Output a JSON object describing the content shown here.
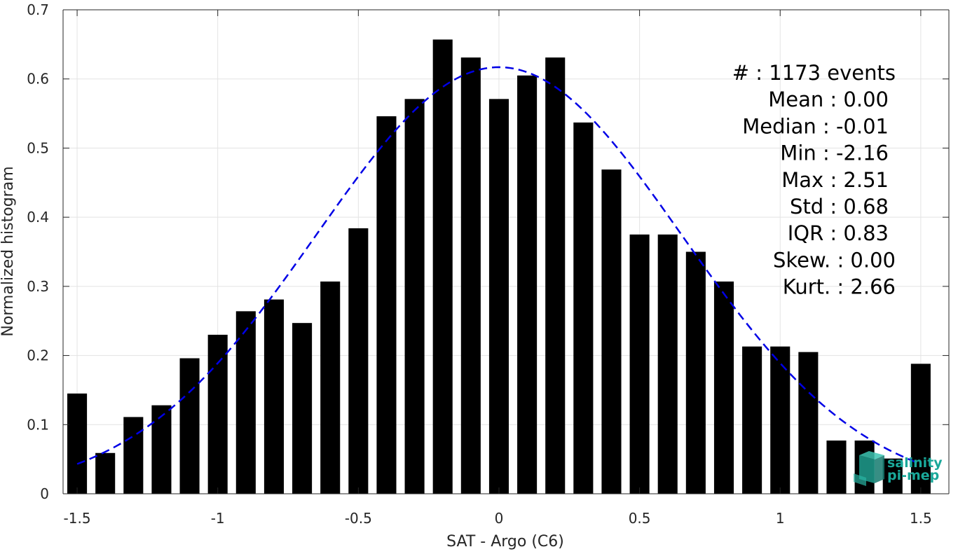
{
  "chart_data": {
    "type": "bar",
    "xlabel": "SAT - Argo (C6)",
    "ylabel": "Normalized histogram",
    "xlim": [
      -1.55,
      1.6
    ],
    "ylim": [
      0,
      0.7
    ],
    "xticks": [
      -1.5,
      -1,
      -0.5,
      0,
      0.5,
      1,
      1.5
    ],
    "xtick_labels": [
      "-1.5",
      "-1",
      "-0.5",
      "0",
      "0.5",
      "1",
      "1.5"
    ],
    "yticks": [
      0,
      0.1,
      0.2,
      0.3,
      0.4,
      0.5,
      0.6,
      0.7
    ],
    "ytick_labels": [
      "0",
      "0.1",
      "0.2",
      "0.3",
      "0.4",
      "0.5",
      "0.6",
      "0.7"
    ],
    "grid": true,
    "bar_color": "#000000",
    "curve_color": "#0000e6",
    "bar_width": 0.07,
    "bars": {
      "x": [
        -1.5,
        -1.4,
        -1.3,
        -1.2,
        -1.1,
        -1.0,
        -0.9,
        -0.8,
        -0.7,
        -0.6,
        -0.5,
        -0.4,
        -0.3,
        -0.2,
        -0.1,
        0.0,
        0.1,
        0.2,
        0.3,
        0.4,
        0.5,
        0.6,
        0.7,
        0.8,
        0.9,
        1.0,
        1.1,
        1.2,
        1.3,
        1.4,
        1.5
      ],
      "values": [
        0.145,
        0.059,
        0.111,
        0.128,
        0.196,
        0.23,
        0.264,
        0.281,
        0.247,
        0.307,
        0.384,
        0.546,
        0.571,
        0.657,
        0.631,
        0.571,
        0.605,
        0.631,
        0.537,
        0.469,
        0.375,
        0.375,
        0.35,
        0.307,
        0.213,
        0.213,
        0.205,
        0.077,
        0.077,
        0.051,
        0.188
      ]
    },
    "fit_curve": {
      "style": "dashed",
      "mean": 0.0,
      "std": 0.65,
      "peak": 0.617,
      "x_range": [
        -1.5,
        1.5
      ]
    },
    "annotations": {
      "stats": [
        {
          "label": "#  : 1173 events"
        },
        {
          "label": "Mean : 0.00"
        },
        {
          "label": "Median : -0.01"
        },
        {
          "label": "Min : -2.16"
        },
        {
          "label": "Max : 2.51"
        },
        {
          "label": "Std : 0.68"
        },
        {
          "label": "IQR : 0.83"
        },
        {
          "label": "Skew. : 0.00"
        },
        {
          "label": "Kurt. : 2.66"
        }
      ]
    },
    "logo": {
      "line1": "salinity",
      "line2": "pi-mep",
      "color": "#1aa89a"
    }
  }
}
